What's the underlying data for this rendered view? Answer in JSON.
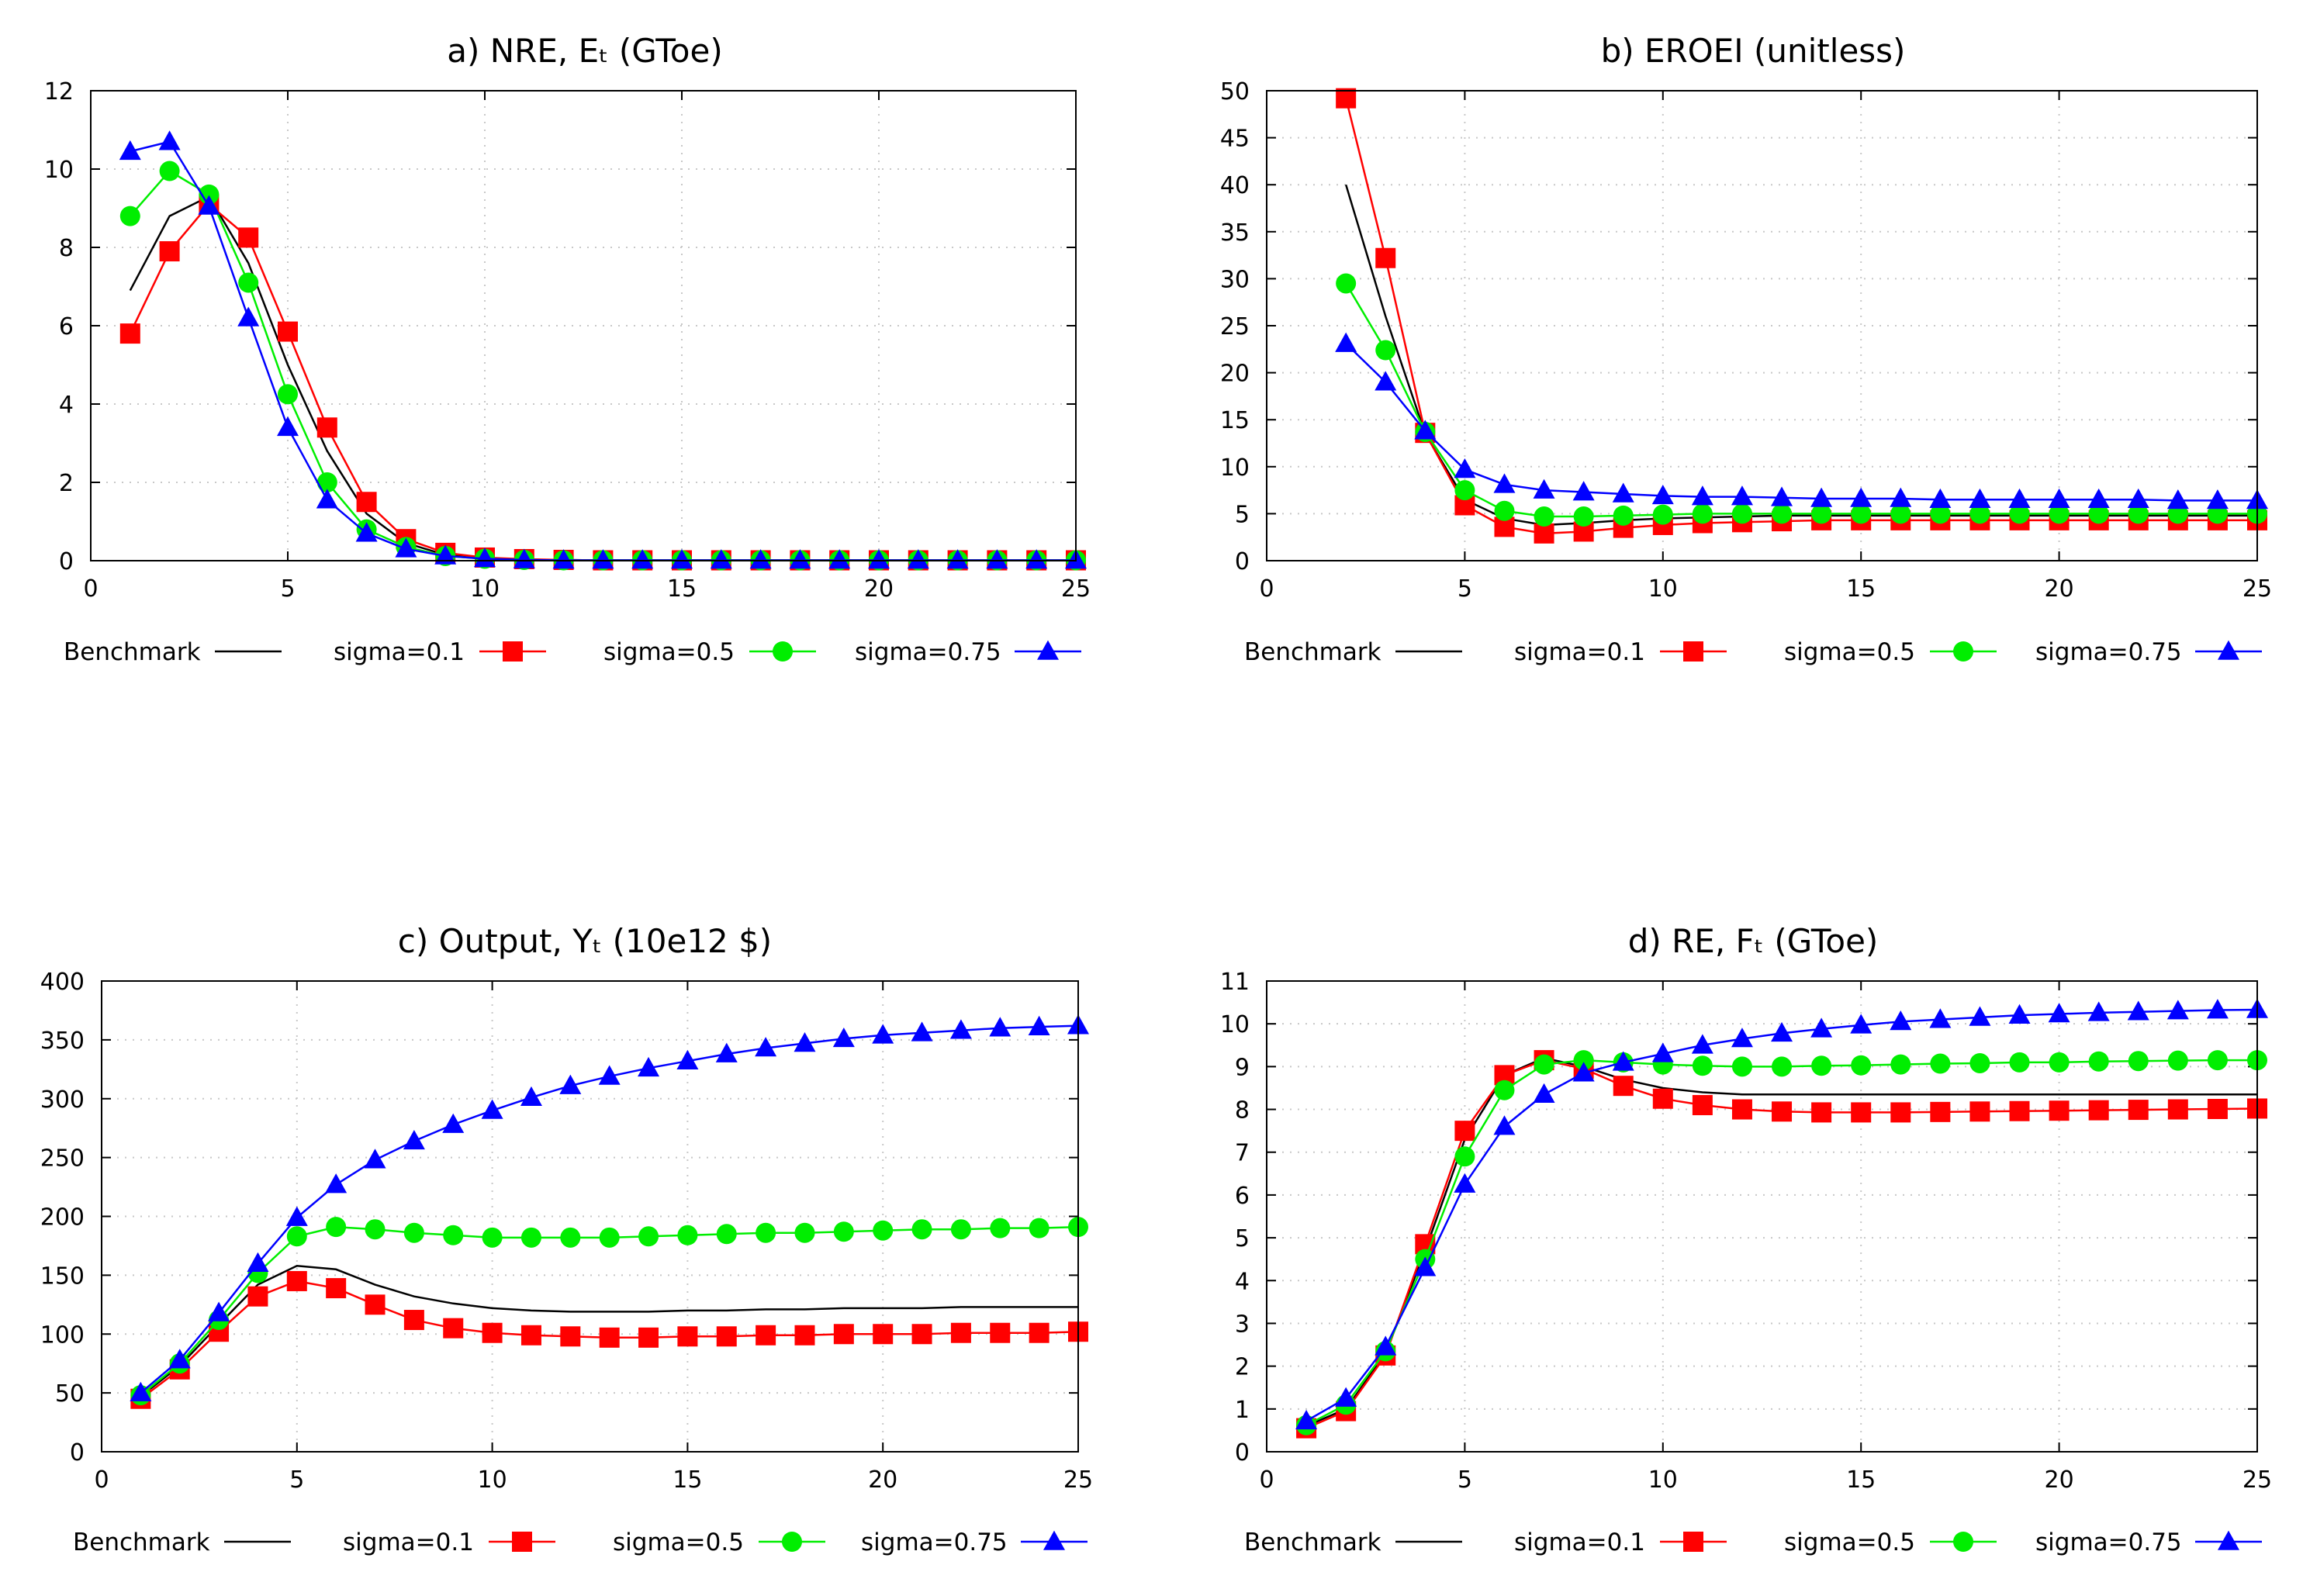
{
  "colors": {
    "Benchmark": "#000000",
    "sigma=0.1": "#ff0000",
    "sigma=0.5": "#00ee00",
    "sigma=0.75": "#0000ff"
  },
  "chart_data": [
    {
      "id": "a",
      "type": "line",
      "title": "a) NRE, Eₜ (GToe)",
      "xlabel": "",
      "ylabel": "",
      "xlim": [
        0,
        25
      ],
      "ylim": [
        0,
        12
      ],
      "xticks": [
        0,
        5,
        10,
        15,
        20,
        25
      ],
      "yticks": [
        0,
        2,
        4,
        6,
        8,
        10,
        12
      ],
      "grid": true,
      "legend_position": "below",
      "x": [
        1,
        2,
        3,
        4,
        5,
        6,
        7,
        8,
        9,
        10,
        11,
        12,
        13,
        14,
        15,
        16,
        17,
        18,
        19,
        20,
        21,
        22,
        23,
        24,
        25
      ],
      "series": [
        {
          "name": "Benchmark",
          "marker": "none",
          "values": [
            6.9,
            8.8,
            9.3,
            7.6,
            5.0,
            2.8,
            1.2,
            0.45,
            0.15,
            0.06,
            0.03,
            0.02,
            0.01,
            0.01,
            0.01,
            0.01,
            0.01,
            0.01,
            0.01,
            0.01,
            0.01,
            0.01,
            0.01,
            0.01,
            0.01
          ]
        },
        {
          "name": "sigma=0.1",
          "marker": "square",
          "values": [
            5.8,
            7.9,
            9.1,
            8.25,
            5.85,
            3.4,
            1.5,
            0.55,
            0.2,
            0.08,
            0.04,
            0.02,
            0.01,
            0.01,
            0.01,
            0.01,
            0.01,
            0.01,
            0.01,
            0.01,
            0.01,
            0.01,
            0.01,
            0.01,
            0.01
          ]
        },
        {
          "name": "sigma=0.5",
          "marker": "circle",
          "values": [
            8.8,
            9.95,
            9.35,
            7.1,
            4.25,
            2.0,
            0.8,
            0.35,
            0.12,
            0.05,
            0.02,
            0.01,
            0.01,
            0.01,
            0.01,
            0.01,
            0.01,
            0.01,
            0.01,
            0.01,
            0.01,
            0.01,
            0.01,
            0.01,
            0.01
          ]
        },
        {
          "name": "sigma=0.75",
          "marker": "triangle",
          "values": [
            10.45,
            10.7,
            9.05,
            6.2,
            3.4,
            1.55,
            0.7,
            0.3,
            0.12,
            0.05,
            0.02,
            0.01,
            0.01,
            0.01,
            0.01,
            0.01,
            0.01,
            0.01,
            0.01,
            0.01,
            0.01,
            0.01,
            0.01,
            0.01,
            0.01
          ]
        }
      ]
    },
    {
      "id": "b",
      "type": "line",
      "title": "b) EROEI (unitless)",
      "xlabel": "",
      "ylabel": "",
      "xlim": [
        0,
        25
      ],
      "ylim": [
        0,
        50
      ],
      "xticks": [
        0,
        5,
        10,
        15,
        20,
        25
      ],
      "yticks": [
        0,
        5,
        10,
        15,
        20,
        25,
        30,
        35,
        40,
        45,
        50
      ],
      "grid": true,
      "legend_position": "below",
      "x": [
        2,
        3,
        4,
        5,
        6,
        7,
        8,
        9,
        10,
        11,
        12,
        13,
        14,
        15,
        16,
        17,
        18,
        19,
        20,
        21,
        22,
        23,
        24,
        25
      ],
      "series": [
        {
          "name": "Benchmark",
          "marker": "none",
          "values": [
            40,
            26,
            13.5,
            6.5,
            4.5,
            3.8,
            4.0,
            4.3,
            4.5,
            4.6,
            4.7,
            4.8,
            4.8,
            4.8,
            4.8,
            4.8,
            4.8,
            4.8,
            4.8,
            4.8,
            4.8,
            4.8,
            4.8,
            4.8
          ]
        },
        {
          "name": "sigma=0.1",
          "marker": "square",
          "values": [
            49.2,
            32.2,
            13.6,
            5.9,
            3.6,
            2.9,
            3.1,
            3.5,
            3.8,
            4.0,
            4.1,
            4.2,
            4.3,
            4.3,
            4.3,
            4.3,
            4.3,
            4.3,
            4.3,
            4.3,
            4.3,
            4.3,
            4.3,
            4.3
          ]
        },
        {
          "name": "sigma=0.5",
          "marker": "circle",
          "values": [
            29.5,
            22.4,
            13.7,
            7.5,
            5.3,
            4.7,
            4.7,
            4.8,
            4.9,
            5.0,
            5.0,
            5.0,
            5.0,
            5.0,
            5.0,
            5.0,
            5.0,
            5.0,
            5.0,
            5.0,
            5.0,
            5.0,
            5.0,
            5.0
          ]
        },
        {
          "name": "sigma=0.75",
          "marker": "triangle",
          "values": [
            23.1,
            19.0,
            13.8,
            9.7,
            8.1,
            7.5,
            7.3,
            7.1,
            6.9,
            6.8,
            6.8,
            6.7,
            6.6,
            6.6,
            6.6,
            6.5,
            6.5,
            6.5,
            6.5,
            6.5,
            6.5,
            6.4,
            6.4,
            6.4
          ]
        }
      ]
    },
    {
      "id": "c",
      "type": "line",
      "title": "c) Output, Yₜ (10e12 $)",
      "xlabel": "",
      "ylabel": "",
      "xlim": [
        0,
        25
      ],
      "ylim": [
        0,
        400
      ],
      "xticks": [
        0,
        5,
        10,
        15,
        20,
        25
      ],
      "yticks": [
        0,
        50,
        100,
        150,
        200,
        250,
        300,
        350,
        400
      ],
      "grid": true,
      "legend_position": "below",
      "x": [
        1,
        2,
        3,
        4,
        5,
        6,
        7,
        8,
        9,
        10,
        11,
        12,
        13,
        14,
        15,
        16,
        17,
        18,
        19,
        20,
        21,
        22,
        23,
        24,
        25
      ],
      "series": [
        {
          "name": "Benchmark",
          "marker": "none",
          "values": [
            47,
            73,
            108,
            142,
            158,
            155,
            142,
            132,
            126,
            122,
            120,
            119,
            119,
            119,
            120,
            120,
            121,
            121,
            122,
            122,
            122,
            123,
            123,
            123,
            123
          ]
        },
        {
          "name": "sigma=0.1",
          "marker": "square",
          "values": [
            45,
            70,
            102,
            132,
            145,
            139,
            125,
            112,
            105,
            101,
            99,
            98,
            97,
            97,
            98,
            98,
            99,
            99,
            100,
            100,
            100,
            101,
            101,
            101,
            102
          ]
        },
        {
          "name": "sigma=0.5",
          "marker": "circle",
          "values": [
            48,
            75,
            112,
            152,
            183,
            191,
            189,
            186,
            184,
            182,
            182,
            182,
            182,
            183,
            184,
            185,
            186,
            186,
            187,
            188,
            189,
            189,
            190,
            190,
            191
          ]
        },
        {
          "name": "sigma=0.75",
          "marker": "triangle",
          "values": [
            50,
            78,
            118,
            160,
            199,
            227,
            248,
            264,
            278,
            290,
            301,
            311,
            319,
            326,
            332,
            338,
            343,
            347,
            351,
            354,
            356,
            358,
            360,
            361,
            362
          ]
        }
      ]
    },
    {
      "id": "d",
      "type": "line",
      "title": "d) RE, Fₜ (GToe)",
      "xlabel": "",
      "ylabel": "",
      "xlim": [
        0,
        25
      ],
      "ylim": [
        0,
        11
      ],
      "xticks": [
        0,
        5,
        10,
        15,
        20,
        25
      ],
      "yticks": [
        0,
        1,
        2,
        3,
        4,
        5,
        6,
        7,
        8,
        9,
        10,
        11
      ],
      "grid": true,
      "legend_position": "below",
      "x": [
        1,
        2,
        3,
        4,
        5,
        6,
        7,
        8,
        9,
        10,
        11,
        12,
        13,
        14,
        15,
        16,
        17,
        18,
        19,
        20,
        21,
        22,
        23,
        24,
        25
      ],
      "series": [
        {
          "name": "Benchmark",
          "marker": "none",
          "values": [
            0.6,
            1.0,
            2.3,
            4.7,
            7.3,
            8.8,
            9.2,
            9.0,
            8.7,
            8.5,
            8.4,
            8.35,
            8.35,
            8.35,
            8.35,
            8.35,
            8.35,
            8.35,
            8.35,
            8.35,
            8.35,
            8.35,
            8.35,
            8.35,
            8.35
          ]
        },
        {
          "name": "sigma=0.1",
          "marker": "square",
          "values": [
            0.55,
            0.95,
            2.25,
            4.85,
            7.5,
            8.8,
            9.15,
            8.95,
            8.55,
            8.25,
            8.1,
            8.0,
            7.95,
            7.93,
            7.93,
            7.93,
            7.94,
            7.95,
            7.96,
            7.97,
            7.98,
            7.99,
            8.0,
            8.01,
            8.02
          ]
        },
        {
          "name": "sigma=0.5",
          "marker": "circle",
          "values": [
            0.62,
            1.1,
            2.35,
            4.5,
            6.9,
            8.45,
            9.05,
            9.15,
            9.1,
            9.05,
            9.02,
            9.0,
            9.0,
            9.02,
            9.03,
            9.05,
            9.07,
            9.08,
            9.1,
            9.1,
            9.12,
            9.13,
            9.14,
            9.15,
            9.15
          ]
        },
        {
          "name": "sigma=0.75",
          "marker": "triangle",
          "values": [
            0.72,
            1.25,
            2.45,
            4.3,
            6.25,
            7.6,
            8.35,
            8.85,
            9.1,
            9.3,
            9.5,
            9.65,
            9.78,
            9.88,
            9.97,
            10.05,
            10.1,
            10.15,
            10.2,
            10.23,
            10.26,
            10.28,
            10.3,
            10.32,
            10.33
          ]
        }
      ]
    }
  ]
}
